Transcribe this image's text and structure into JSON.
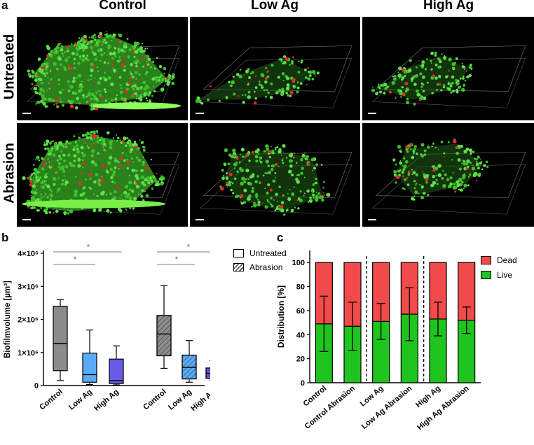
{
  "panel_a": {
    "letter": "a",
    "columns": [
      "Control",
      "Low Ag",
      "High Ag"
    ],
    "rows": [
      "Untreated",
      "Abrasion"
    ]
  },
  "panel_b": {
    "letter": "b"
  },
  "panel_c": {
    "letter": "c"
  },
  "chart_data": [
    {
      "type": "box",
      "ylabel": "Biofilmvolume [µm³]",
      "ylim": [
        0,
        4000000
      ],
      "yticks": [
        0,
        1000000,
        2000000,
        3000000,
        4000000
      ],
      "ytick_labels": [
        "0",
        "1×10⁶",
        "2×10⁶",
        "3×10⁶",
        "4×10⁶"
      ],
      "categories": [
        "Control",
        "Low Ag",
        "High Ag",
        "Control",
        "Low Ag",
        "High Ag"
      ],
      "legend": [
        "Untreated",
        "Abrasion"
      ],
      "legend_position": "top-right",
      "colors": {
        "Control": "#8c8c8c",
        "Low Ag": "#5aabf5",
        "High Ag": "#6a5ae8"
      },
      "series": [
        {
          "name": "Untreated",
          "boxes": [
            {
              "category": "Control",
              "min": 150000,
              "q1": 450000,
              "median": 1270000,
              "q3": 2400000,
              "max": 2600000
            },
            {
              "category": "Low Ag",
              "min": 30000,
              "q1": 100000,
              "median": 330000,
              "q3": 980000,
              "max": 1680000
            },
            {
              "category": "High Ag",
              "min": 20000,
              "q1": 60000,
              "median": 150000,
              "q3": 800000,
              "max": 1200000
            }
          ]
        },
        {
          "name": "Abrasion",
          "boxes": [
            {
              "category": "Control",
              "min": 520000,
              "q1": 900000,
              "median": 1560000,
              "q3": 2120000,
              "max": 3020000
            },
            {
              "category": "Low Ag",
              "min": 100000,
              "q1": 200000,
              "median": 550000,
              "q3": 920000,
              "max": 1360000
            },
            {
              "category": "High Ag",
              "min": 150000,
              "q1": 220000,
              "median": 370000,
              "q3": 530000,
              "max": 750000
            }
          ]
        }
      ],
      "significance": [
        {
          "from": 0,
          "to": 1,
          "label": "*"
        },
        {
          "from": 0,
          "to": 2,
          "label": "*"
        },
        {
          "from": 3,
          "to": 4,
          "label": "*"
        },
        {
          "from": 3,
          "to": 5,
          "label": "*"
        }
      ]
    },
    {
      "type": "bar",
      "stacked": true,
      "ylabel": "Distribution [%]",
      "ylim": [
        0,
        110
      ],
      "yticks": [
        0,
        20,
        40,
        60,
        80,
        100
      ],
      "categories": [
        "Control",
        "Control Abrasion",
        "Low Ag",
        "Low Ag Abrasion",
        "High Ag",
        "High Ag Abrasion"
      ],
      "legend_position": "top-right",
      "series": [
        {
          "name": "Live",
          "color": "#1fc41f",
          "values": [
            49,
            47,
            51,
            57,
            53,
            52
          ],
          "error": [
            23,
            20,
            15,
            22,
            14,
            11
          ]
        },
        {
          "name": "Dead",
          "color": "#f04a4a",
          "values": [
            51,
            53,
            49,
            43,
            47,
            48
          ]
        }
      ],
      "separators_after": [
        1,
        3
      ]
    }
  ]
}
